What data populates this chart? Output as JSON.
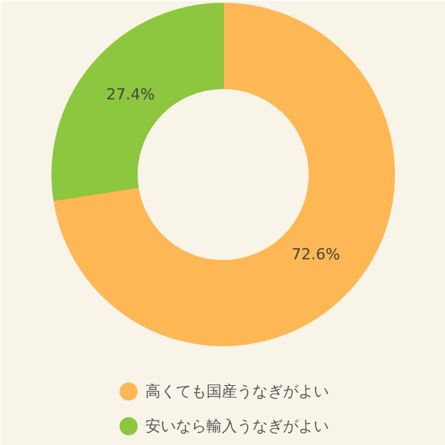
{
  "chart_data": {
    "type": "donut",
    "categories": [
      "高くても国産うなぎがよい",
      "安いなら輸入うなぎがよい"
    ],
    "values": [
      72.6,
      27.4
    ],
    "colors": [
      "#fdb754",
      "#8dc63f"
    ],
    "value_labels": [
      "72.6%",
      "27.4%"
    ],
    "legend": "bottom"
  }
}
